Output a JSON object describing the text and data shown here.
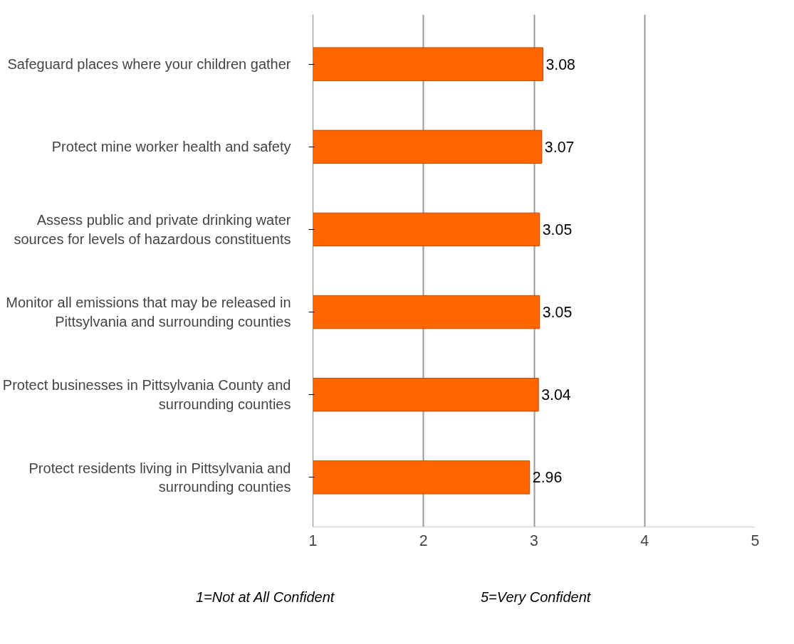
{
  "chart_data": {
    "type": "bar",
    "orientation": "horizontal",
    "categories": [
      "Safeguard places where your children gather",
      "Protect mine worker health and safety",
      "Assess public and private drinking water sources for levels of hazardous constituents",
      "Monitor all emissions that may be released in Pittsylvania and surrounding counties",
      "Protect businesses in Pittsylvania County and surrounding counties",
      "Protect residents living in Pittsylvania and surrounding counties"
    ],
    "values": [
      3.08,
      3.07,
      3.05,
      3.05,
      3.04,
      2.96
    ],
    "color": "#ff6600",
    "xlim": [
      1,
      5
    ],
    "xticks": [
      1,
      2,
      3,
      4,
      5
    ],
    "grid": "x",
    "data_labels": true,
    "annotations": [
      "1=Not at All Confident",
      "5=Very Confident"
    ]
  }
}
